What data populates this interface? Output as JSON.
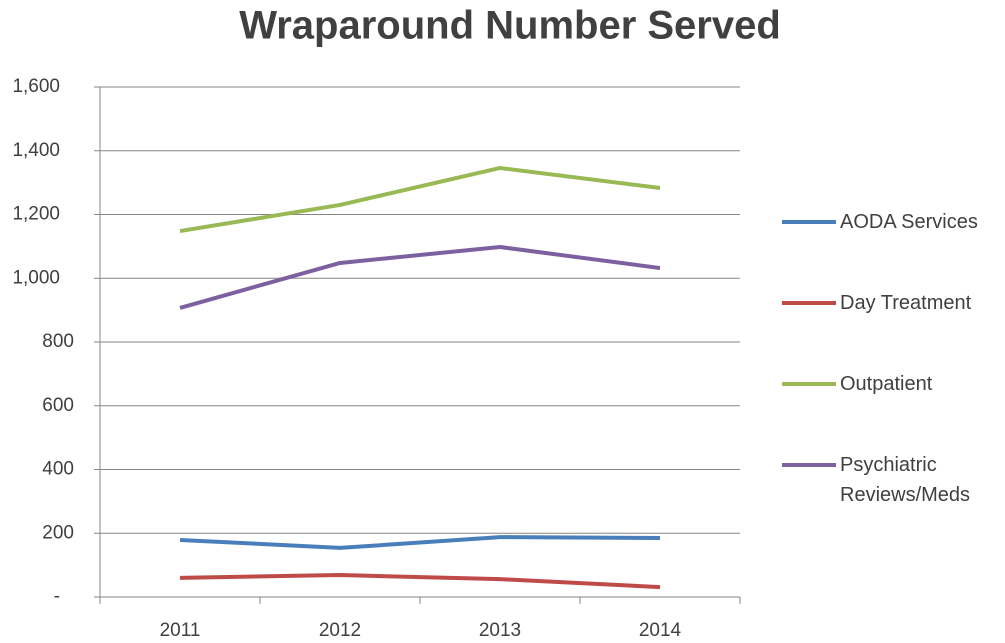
{
  "chart_data": {
    "type": "line",
    "title": "Wraparound Number Served",
    "categories": [
      "2011",
      "2012",
      "2013",
      "2014"
    ],
    "series": [
      {
        "name": "AODA Services",
        "color": "#4a7ebb",
        "values": [
          179,
          154,
          188,
          185
        ]
      },
      {
        "name": "Day Treatment",
        "color": "#be4b48",
        "values": [
          60,
          69,
          56,
          31
        ]
      },
      {
        "name": "Outpatient",
        "color": "#98b954",
        "values": [
          1148,
          1230,
          1346,
          1283
        ]
      },
      {
        "name": "Psychiatric Reviews/Meds",
        "color": "#7d60a0",
        "values": [
          907,
          1048,
          1098,
          1032
        ]
      }
    ],
    "ylim": [
      0,
      1600
    ],
    "yticks": [
      {
        "value": 0,
        "label": "-"
      },
      200,
      400,
      600,
      800,
      {
        "value": 1000,
        "label": "1,000"
      },
      {
        "value": 1200,
        "label": "1,200"
      },
      {
        "value": 1400,
        "label": "1,400"
      },
      {
        "value": 1600,
        "label": "1,600"
      }
    ],
    "grid": true,
    "legend": "right"
  }
}
